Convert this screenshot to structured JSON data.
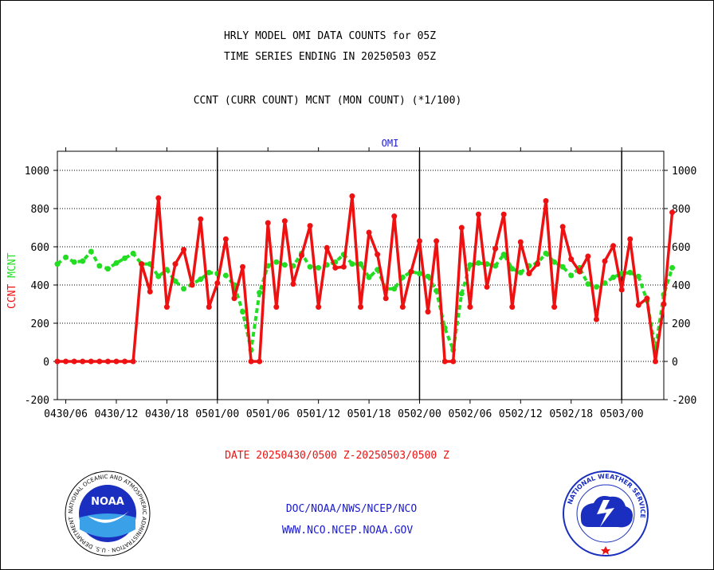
{
  "header": {
    "title_line1": "HRLY MODEL OMI DATA COUNTS for 05Z",
    "title_line2": "TIME SERIES ENDING IN 20250503 05Z",
    "subtitle": "CCNT (CURR COUNT) MCNT (MON COUNT) (*1/100)"
  },
  "footer": {
    "date_range": "DATE 20250430/0500 Z-20250503/0500 Z",
    "org_line": "DOC/NOAA/NWS/NCEP/NCO",
    "url_line": "WWW.NCO.NCEP.NOAA.GOV"
  },
  "logos": {
    "noaa": {
      "text": "NOAA",
      "ring_text": "NATIONAL OCEANIC AND ATMOSPHERIC ADMINISTRATION · U.S. DEPARTMENT OF COMMERCE"
    },
    "nws": {
      "ring_text": "NATIONAL WEATHER SERVICE"
    }
  },
  "colors": {
    "ccnt": "#ee1111",
    "mcnt": "#22dd22",
    "panel_title": "#1a1acc",
    "footer_blue": "#1a1acc",
    "date_red": "#ee1111"
  },
  "chart_data": {
    "type": "line",
    "title": "OMI",
    "ylabel_left": [
      {
        "text": "CCNT",
        "color": "#ee1111"
      },
      {
        "text": "MCNT",
        "color": "#22dd22"
      }
    ],
    "ylim": [
      -200,
      1100
    ],
    "yticks": [
      -200,
      0,
      200,
      400,
      600,
      800,
      1000
    ],
    "ytick_labels": [
      "-200",
      "0",
      "200",
      "400",
      "600",
      "800",
      "1000"
    ],
    "xlim": [
      0,
      72
    ],
    "xticks": [
      1,
      7,
      13,
      19,
      25,
      31,
      37,
      43,
      49,
      55,
      61,
      67
    ],
    "xtick_labels": [
      "0430/06",
      "0430/12",
      "0430/18",
      "0501/00",
      "0501/06",
      "0501/12",
      "0501/18",
      "0502/00",
      "0502/06",
      "0502/12",
      "0502/18",
      "0503/00"
    ],
    "day_lines": [
      19,
      43,
      67
    ],
    "grid": true,
    "x_unit": "hours since 20250430/0500 Z",
    "series": [
      {
        "name": "CCNT",
        "color": "#ee1111",
        "values": [
          0,
          0,
          0,
          0,
          0,
          0,
          0,
          0,
          0,
          0,
          510,
          365,
          855,
          285,
          510,
          585,
          400,
          745,
          285,
          410,
          640,
          330,
          495,
          0,
          0,
          725,
          285,
          735,
          405,
          555,
          710,
          285,
          595,
          490,
          495,
          865,
          285,
          675,
          560,
          330,
          760,
          285,
          470,
          630,
          260,
          630,
          0,
          0,
          700,
          285,
          770,
          390,
          590,
          770,
          285,
          625,
          460,
          510,
          840,
          285,
          705,
          535,
          470,
          550,
          220,
          525,
          605,
          375,
          640,
          295,
          330,
          0,
          300,
          780
        ]
      },
      {
        "name": "MCNT",
        "color": "#22dd22",
        "values": [
          510,
          545,
          520,
          525,
          575,
          500,
          485,
          515,
          540,
          565,
          510,
          510,
          445,
          480,
          420,
          380,
          405,
          430,
          465,
          460,
          450,
          400,
          260,
          60,
          360,
          500,
          520,
          505,
          500,
          565,
          495,
          490,
          505,
          520,
          560,
          510,
          510,
          440,
          480,
          380,
          380,
          440,
          470,
          460,
          445,
          370,
          175,
          60,
          355,
          505,
          515,
          510,
          500,
          560,
          485,
          465,
          500,
          515,
          565,
          520,
          495,
          450,
          490,
          405,
          390,
          410,
          440,
          460,
          465,
          445,
          320,
          60,
          350,
          490
        ]
      }
    ]
  }
}
